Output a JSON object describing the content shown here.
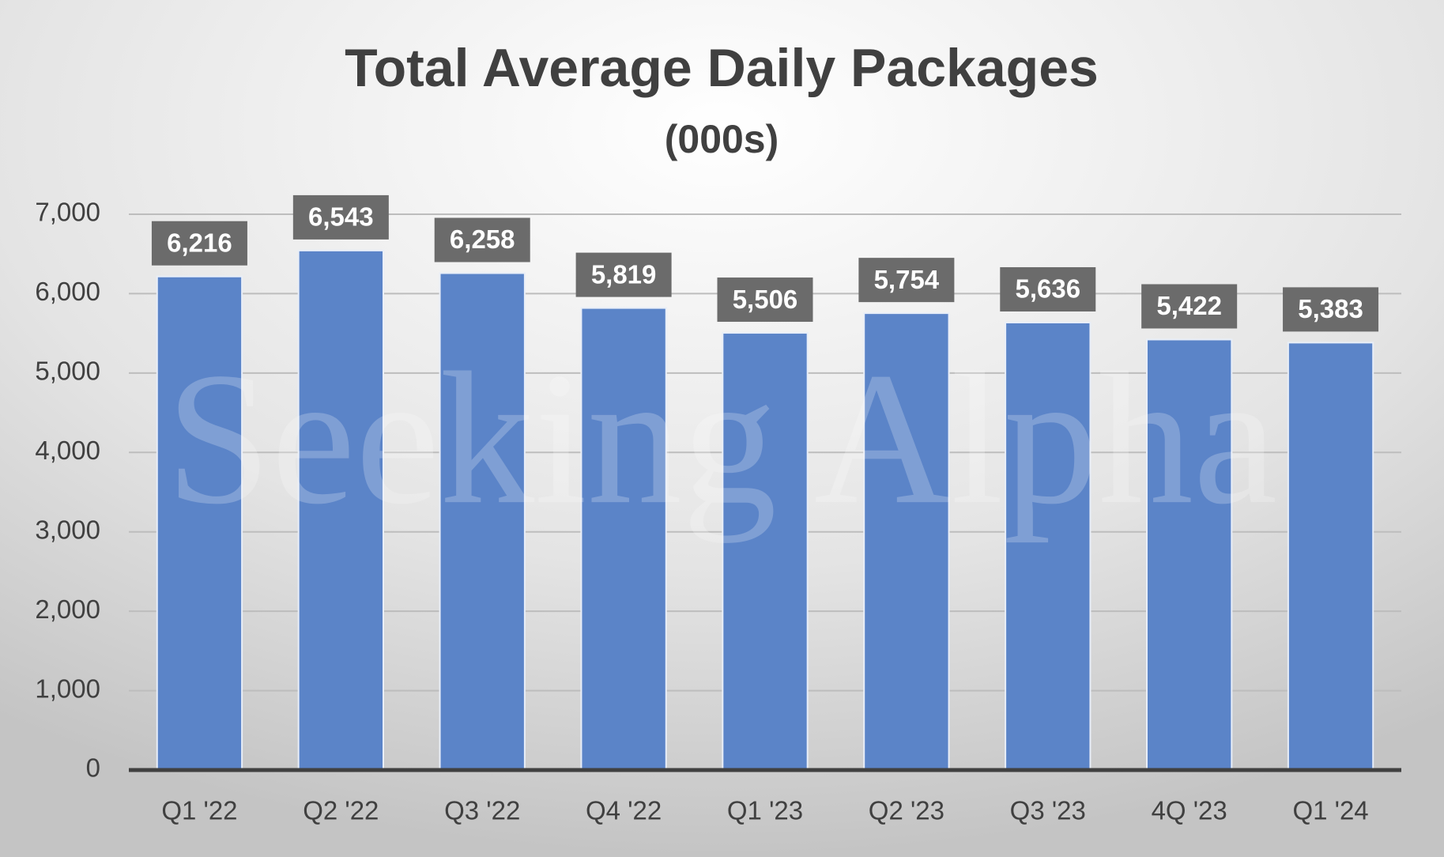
{
  "chart_data": {
    "type": "bar",
    "title": "Total Average Daily Packages",
    "subtitle": "(000s)",
    "watermark": "Seeking Alpha",
    "categories": [
      "Q1 '22",
      "Q2 '22",
      "Q3 '22",
      "Q4 '22",
      "Q1 '23",
      "Q2 '23",
      "Q3 '23",
      "4Q '23",
      "Q1 '24"
    ],
    "values": [
      6216,
      6543,
      6258,
      5819,
      5506,
      5754,
      5636,
      5422,
      5383
    ],
    "value_labels": [
      "6,216",
      "6,543",
      "6,258",
      "5,819",
      "5,506",
      "5,754",
      "5,636",
      "5,422",
      "5,383"
    ],
    "color": "#5b84c8",
    "ylim": [
      0,
      7000
    ],
    "yticks": [
      0,
      {
        "value": 1000,
        "label": "1,000"
      },
      {
        "value": 2000,
        "label": "2,000"
      },
      {
        "value": 3000,
        "label": "3,000"
      },
      {
        "value": 4000,
        "label": "4,000"
      },
      {
        "value": 5000,
        "label": "5,000"
      },
      {
        "value": 6000,
        "label": "6,000"
      },
      {
        "value": 7000,
        "label": "7,000"
      }
    ],
    "grid": true
  }
}
